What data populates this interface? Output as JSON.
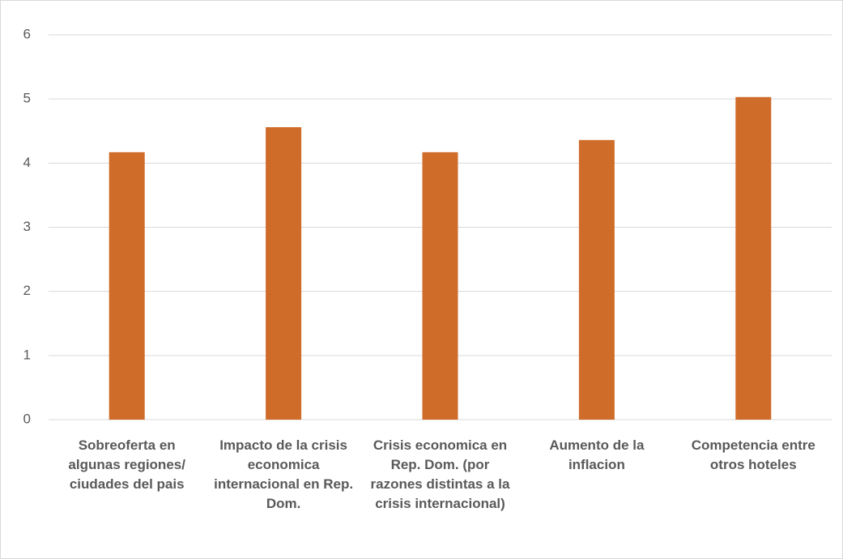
{
  "chart_data": {
    "type": "bar",
    "categories": [
      "Sobreoferta en algunas regiones/ ciudades del pais",
      "Impacto de la crisis economica internacional en Rep. Dom.",
      "Crisis economica en Rep. Dom. (por razones distintas a la crisis internacional)",
      "Aumento de la inflacion",
      "Competencia entre otros hoteles"
    ],
    "values": [
      4.17,
      4.56,
      4.17,
      4.36,
      5.03
    ],
    "color": "#d06c2a",
    "ylim": [
      0,
      6
    ],
    "yticks": [
      0,
      1,
      2,
      3,
      4,
      5,
      6
    ],
    "grid": true
  }
}
